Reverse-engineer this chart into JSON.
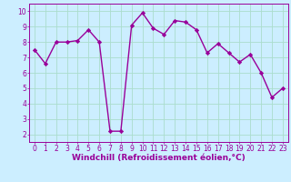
{
  "x": [
    0,
    1,
    2,
    3,
    4,
    5,
    6,
    7,
    8,
    9,
    10,
    11,
    12,
    13,
    14,
    15,
    16,
    17,
    18,
    19,
    20,
    21,
    22,
    23
  ],
  "y": [
    7.5,
    6.6,
    8.0,
    8.0,
    8.1,
    8.8,
    8.0,
    2.2,
    2.2,
    9.1,
    9.9,
    8.9,
    8.5,
    9.4,
    9.3,
    8.8,
    7.3,
    7.9,
    7.3,
    6.7,
    7.2,
    6.0,
    4.4,
    5.0
  ],
  "line_color": "#990099",
  "marker": "D",
  "marker_size": 2.2,
  "line_width": 1.0,
  "bg_color": "#cceeff",
  "grid_color": "#aaddcc",
  "xlabel": "Windchill (Refroidissement éolien,°C)",
  "xlabel_color": "#990099",
  "tick_color": "#990099",
  "xlabel_fontsize": 6.5,
  "tick_fontsize": 5.5,
  "xlim": [
    -0.5,
    23.5
  ],
  "ylim": [
    1.5,
    10.5
  ],
  "yticks": [
    2,
    3,
    4,
    5,
    6,
    7,
    8,
    9,
    10
  ],
  "xticks": [
    0,
    1,
    2,
    3,
    4,
    5,
    6,
    7,
    8,
    9,
    10,
    11,
    12,
    13,
    14,
    15,
    16,
    17,
    18,
    19,
    20,
    21,
    22,
    23
  ]
}
